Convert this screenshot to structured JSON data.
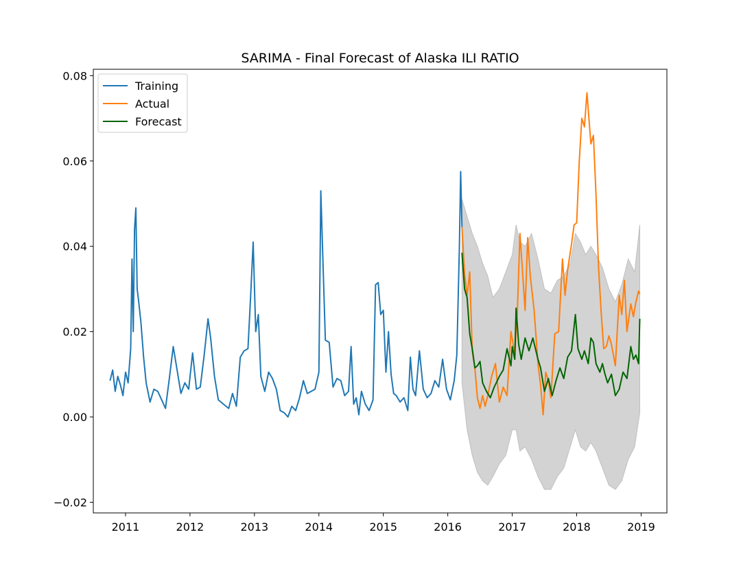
{
  "chart_data": {
    "type": "line",
    "title": "SARIMA - Final Forecast of Alaska ILI RATIO",
    "xlabel": "",
    "ylabel": "",
    "xlim": [
      2010.5,
      2019.4
    ],
    "ylim": [
      -0.0225,
      0.0815
    ],
    "x_ticks": [
      2011,
      2012,
      2013,
      2014,
      2015,
      2016,
      2017,
      2018,
      2019
    ],
    "x_tick_labels": [
      "2011",
      "2012",
      "2013",
      "2014",
      "2015",
      "2016",
      "2017",
      "2018",
      "2019"
    ],
    "y_ticks": [
      -0.02,
      0.0,
      0.02,
      0.04,
      0.06,
      0.08
    ],
    "y_tick_labels": [
      "−0.02",
      "0.00",
      "0.02",
      "0.04",
      "0.06",
      "0.08"
    ],
    "legend": {
      "placement": "upper-left",
      "entries": [
        "Training",
        "Actual",
        "Forecast"
      ]
    },
    "colors": {
      "training": "#1f77b4",
      "actual": "#ff7f0e",
      "forecast": "#006400",
      "confidence_band": "#d3d3d3"
    },
    "series": [
      {
        "name": "Training",
        "points": [
          [
            2010.76,
            0.0085
          ],
          [
            2010.8,
            0.011
          ],
          [
            2010.84,
            0.006
          ],
          [
            2010.88,
            0.0095
          ],
          [
            2010.92,
            0.0075
          ],
          [
            2010.96,
            0.005
          ],
          [
            2011.0,
            0.0105
          ],
          [
            2011.04,
            0.008
          ],
          [
            2011.08,
            0.016
          ],
          [
            2011.1,
            0.037
          ],
          [
            2011.12,
            0.02
          ],
          [
            2011.14,
            0.044
          ],
          [
            2011.16,
            0.049
          ],
          [
            2011.18,
            0.03
          ],
          [
            2011.2,
            0.0275
          ],
          [
            2011.24,
            0.022
          ],
          [
            2011.28,
            0.014
          ],
          [
            2011.32,
            0.008
          ],
          [
            2011.38,
            0.0035
          ],
          [
            2011.44,
            0.0065
          ],
          [
            2011.5,
            0.006
          ],
          [
            2011.56,
            0.004
          ],
          [
            2011.62,
            0.002
          ],
          [
            2011.68,
            0.009
          ],
          [
            2011.74,
            0.0165
          ],
          [
            2011.8,
            0.011
          ],
          [
            2011.86,
            0.0055
          ],
          [
            2011.92,
            0.008
          ],
          [
            2011.98,
            0.0065
          ],
          [
            2012.04,
            0.015
          ],
          [
            2012.1,
            0.0065
          ],
          [
            2012.16,
            0.007
          ],
          [
            2012.22,
            0.0145
          ],
          [
            2012.28,
            0.023
          ],
          [
            2012.32,
            0.0185
          ],
          [
            2012.38,
            0.0095
          ],
          [
            2012.44,
            0.004
          ],
          [
            2012.52,
            0.003
          ],
          [
            2012.6,
            0.002
          ],
          [
            2012.66,
            0.0055
          ],
          [
            2012.72,
            0.0025
          ],
          [
            2012.78,
            0.014
          ],
          [
            2012.84,
            0.0155
          ],
          [
            2012.9,
            0.016
          ],
          [
            2012.94,
            0.028
          ],
          [
            2012.98,
            0.041
          ],
          [
            2013.02,
            0.02
          ],
          [
            2013.06,
            0.024
          ],
          [
            2013.1,
            0.0095
          ],
          [
            2013.16,
            0.006
          ],
          [
            2013.22,
            0.0105
          ],
          [
            2013.28,
            0.009
          ],
          [
            2013.34,
            0.0065
          ],
          [
            2013.4,
            0.0015
          ],
          [
            2013.46,
            0.001
          ],
          [
            2013.52,
            0.0
          ],
          [
            2013.58,
            0.0025
          ],
          [
            2013.64,
            0.0015
          ],
          [
            2013.7,
            0.0045
          ],
          [
            2013.76,
            0.0085
          ],
          [
            2013.82,
            0.0055
          ],
          [
            2013.88,
            0.006
          ],
          [
            2013.94,
            0.0065
          ],
          [
            2014.0,
            0.0105
          ],
          [
            2014.03,
            0.053
          ],
          [
            2014.06,
            0.038
          ],
          [
            2014.1,
            0.018
          ],
          [
            2014.16,
            0.0175
          ],
          [
            2014.22,
            0.007
          ],
          [
            2014.28,
            0.009
          ],
          [
            2014.34,
            0.0085
          ],
          [
            2014.4,
            0.005
          ],
          [
            2014.46,
            0.006
          ],
          [
            2014.5,
            0.0165
          ],
          [
            2014.54,
            0.003
          ],
          [
            2014.58,
            0.0045
          ],
          [
            2014.62,
            0.0005
          ],
          [
            2014.66,
            0.006
          ],
          [
            2014.72,
            0.003
          ],
          [
            2014.78,
            0.0015
          ],
          [
            2014.84,
            0.004
          ],
          [
            2014.88,
            0.031
          ],
          [
            2014.92,
            0.0315
          ],
          [
            2014.96,
            0.024
          ],
          [
            2015.0,
            0.025
          ],
          [
            2015.04,
            0.0105
          ],
          [
            2015.08,
            0.02
          ],
          [
            2015.12,
            0.01
          ],
          [
            2015.16,
            0.0055
          ],
          [
            2015.2,
            0.005
          ],
          [
            2015.26,
            0.0035
          ],
          [
            2015.32,
            0.0045
          ],
          [
            2015.38,
            0.0015
          ],
          [
            2015.42,
            0.014
          ],
          [
            2015.46,
            0.0065
          ],
          [
            2015.5,
            0.005
          ],
          [
            2015.56,
            0.0155
          ],
          [
            2015.62,
            0.0065
          ],
          [
            2015.68,
            0.0045
          ],
          [
            2015.74,
            0.0055
          ],
          [
            2015.8,
            0.0085
          ],
          [
            2015.86,
            0.007
          ],
          [
            2015.92,
            0.0135
          ],
          [
            2015.98,
            0.0065
          ],
          [
            2016.04,
            0.004
          ],
          [
            2016.1,
            0.0085
          ],
          [
            2016.14,
            0.0145
          ],
          [
            2016.18,
            0.0395
          ],
          [
            2016.2,
            0.0575
          ],
          [
            2016.22,
            0.0445
          ]
        ]
      },
      {
        "name": "Actual",
        "points": [
          [
            2016.22,
            0.0445
          ],
          [
            2016.26,
            0.0335
          ],
          [
            2016.3,
            0.0285
          ],
          [
            2016.34,
            0.034
          ],
          [
            2016.38,
            0.0155
          ],
          [
            2016.42,
            0.0115
          ],
          [
            2016.46,
            0.0045
          ],
          [
            2016.5,
            0.002
          ],
          [
            2016.54,
            0.005
          ],
          [
            2016.58,
            0.0025
          ],
          [
            2016.62,
            0.005
          ],
          [
            2016.68,
            0.0095
          ],
          [
            2016.74,
            0.0125
          ],
          [
            2016.8,
            0.0035
          ],
          [
            2016.86,
            0.007
          ],
          [
            2016.92,
            0.005
          ],
          [
            2016.98,
            0.02
          ],
          [
            2017.04,
            0.015
          ],
          [
            2017.08,
            0.025
          ],
          [
            2017.12,
            0.043
          ],
          [
            2017.16,
            0.034
          ],
          [
            2017.2,
            0.025
          ],
          [
            2017.24,
            0.042
          ],
          [
            2017.28,
            0.033
          ],
          [
            2017.34,
            0.025
          ],
          [
            2017.4,
            0.0125
          ],
          [
            2017.44,
            0.0075
          ],
          [
            2017.48,
            0.0005
          ],
          [
            2017.52,
            0.0105
          ],
          [
            2017.56,
            0.0085
          ],
          [
            2017.6,
            0.0045
          ],
          [
            2017.66,
            0.0195
          ],
          [
            2017.72,
            0.02
          ],
          [
            2017.78,
            0.037
          ],
          [
            2017.82,
            0.0285
          ],
          [
            2017.86,
            0.0345
          ],
          [
            2017.92,
            0.0405
          ],
          [
            2017.96,
            0.045
          ],
          [
            2018.0,
            0.0455
          ],
          [
            2018.04,
            0.06
          ],
          [
            2018.08,
            0.07
          ],
          [
            2018.12,
            0.068
          ],
          [
            2018.16,
            0.076
          ],
          [
            2018.18,
            0.072
          ],
          [
            2018.22,
            0.064
          ],
          [
            2018.26,
            0.066
          ],
          [
            2018.3,
            0.052
          ],
          [
            2018.34,
            0.035
          ],
          [
            2018.38,
            0.0245
          ],
          [
            2018.42,
            0.016
          ],
          [
            2018.46,
            0.0165
          ],
          [
            2018.5,
            0.019
          ],
          [
            2018.54,
            0.017
          ],
          [
            2018.6,
            0.012
          ],
          [
            2018.66,
            0.0285
          ],
          [
            2018.7,
            0.024
          ],
          [
            2018.74,
            0.032
          ],
          [
            2018.78,
            0.02
          ],
          [
            2018.84,
            0.0265
          ],
          [
            2018.88,
            0.0235
          ],
          [
            2018.92,
            0.027
          ],
          [
            2018.96,
            0.0295
          ],
          [
            2018.98,
            0.0288
          ]
        ]
      },
      {
        "name": "Forecast",
        "points": [
          [
            2016.22,
            0.0385
          ],
          [
            2016.26,
            0.03
          ],
          [
            2016.3,
            0.028
          ],
          [
            2016.34,
            0.0195
          ],
          [
            2016.38,
            0.016
          ],
          [
            2016.42,
            0.0115
          ],
          [
            2016.46,
            0.012
          ],
          [
            2016.5,
            0.013
          ],
          [
            2016.54,
            0.008
          ],
          [
            2016.6,
            0.006
          ],
          [
            2016.66,
            0.0045
          ],
          [
            2016.72,
            0.007
          ],
          [
            2016.8,
            0.0095
          ],
          [
            2016.86,
            0.011
          ],
          [
            2016.92,
            0.016
          ],
          [
            2016.98,
            0.012
          ],
          [
            2017.0,
            0.0165
          ],
          [
            2017.04,
            0.0135
          ],
          [
            2017.06,
            0.0255
          ],
          [
            2017.1,
            0.017
          ],
          [
            2017.14,
            0.0135
          ],
          [
            2017.2,
            0.0185
          ],
          [
            2017.26,
            0.0155
          ],
          [
            2017.32,
            0.0185
          ],
          [
            2017.36,
            0.016
          ],
          [
            2017.4,
            0.0135
          ],
          [
            2017.44,
            0.0115
          ],
          [
            2017.5,
            0.006
          ],
          [
            2017.56,
            0.009
          ],
          [
            2017.62,
            0.005
          ],
          [
            2017.68,
            0.0085
          ],
          [
            2017.74,
            0.0115
          ],
          [
            2017.8,
            0.009
          ],
          [
            2017.86,
            0.014
          ],
          [
            2017.92,
            0.0155
          ],
          [
            2017.98,
            0.024
          ],
          [
            2018.02,
            0.016
          ],
          [
            2018.08,
            0.0135
          ],
          [
            2018.12,
            0.0155
          ],
          [
            2018.18,
            0.0125
          ],
          [
            2018.22,
            0.0185
          ],
          [
            2018.26,
            0.0175
          ],
          [
            2018.3,
            0.0125
          ],
          [
            2018.36,
            0.0105
          ],
          [
            2018.4,
            0.0125
          ],
          [
            2018.44,
            0.01
          ],
          [
            2018.48,
            0.008
          ],
          [
            2018.54,
            0.01
          ],
          [
            2018.6,
            0.005
          ],
          [
            2018.66,
            0.0065
          ],
          [
            2018.72,
            0.0105
          ],
          [
            2018.78,
            0.009
          ],
          [
            2018.84,
            0.0165
          ],
          [
            2018.88,
            0.0135
          ],
          [
            2018.92,
            0.0145
          ],
          [
            2018.96,
            0.0125
          ],
          [
            2018.98,
            0.023
          ]
        ]
      }
    ],
    "confidence_band": {
      "x": [
        2016.22,
        2016.3,
        2016.38,
        2016.46,
        2016.54,
        2016.62,
        2016.7,
        2016.8,
        2016.9,
        2017.0,
        2017.06,
        2017.12,
        2017.2,
        2017.3,
        2017.4,
        2017.5,
        2017.6,
        2017.7,
        2017.8,
        2017.9,
        2017.98,
        2018.06,
        2018.14,
        2018.22,
        2018.3,
        2018.4,
        2018.5,
        2018.6,
        2018.7,
        2018.8,
        2018.9,
        2018.98
      ],
      "upper": [
        0.051,
        0.047,
        0.043,
        0.04,
        0.036,
        0.033,
        0.028,
        0.03,
        0.034,
        0.038,
        0.045,
        0.041,
        0.04,
        0.043,
        0.037,
        0.03,
        0.029,
        0.032,
        0.033,
        0.036,
        0.043,
        0.041,
        0.038,
        0.04,
        0.038,
        0.035,
        0.03,
        0.027,
        0.031,
        0.037,
        0.034,
        0.045
      ],
      "lower": [
        0.008,
        -0.003,
        -0.009,
        -0.013,
        -0.015,
        -0.016,
        -0.014,
        -0.011,
        -0.009,
        -0.003,
        -0.003,
        -0.008,
        -0.007,
        -0.01,
        -0.014,
        -0.017,
        -0.017,
        -0.014,
        -0.012,
        -0.007,
        -0.003,
        -0.007,
        -0.008,
        -0.006,
        -0.008,
        -0.012,
        -0.016,
        -0.017,
        -0.015,
        -0.01,
        -0.007,
        0.001
      ]
    }
  }
}
